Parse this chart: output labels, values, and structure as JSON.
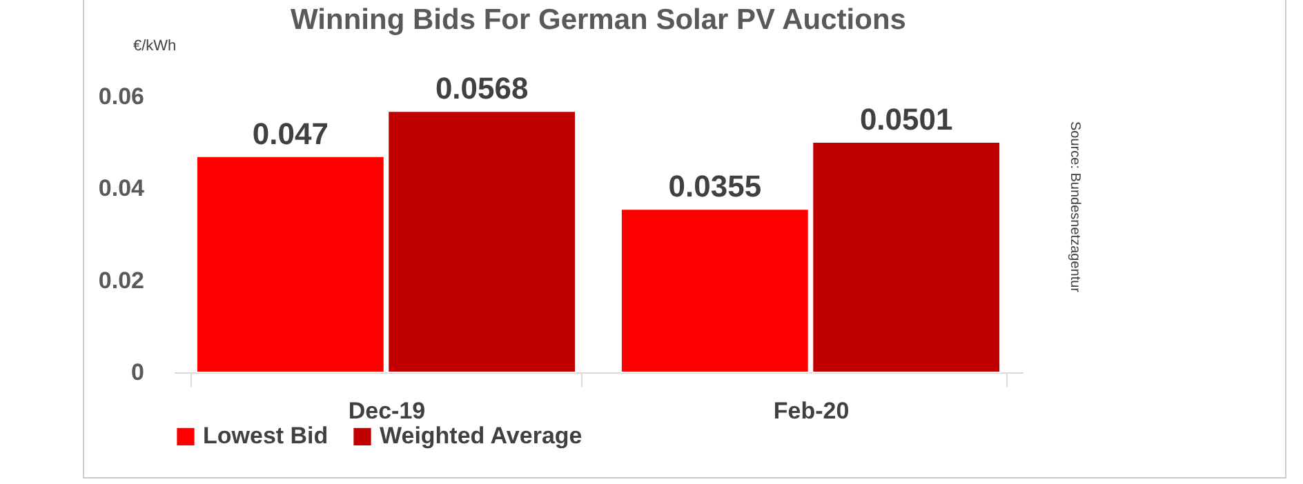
{
  "chart_data": {
    "type": "bar",
    "title": "Winning Bids For German Solar PV Auctions",
    "ylabel": "€/kWh",
    "categories": [
      "Dec-19",
      "Feb-20"
    ],
    "series": [
      {
        "name": "Lowest Bid",
        "color": "#ff0000",
        "values": [
          0.047,
          0.0355
        ]
      },
      {
        "name": "Weighted Average",
        "color": "#c00000",
        "values": [
          0.0568,
          0.0501
        ]
      }
    ],
    "ylim": [
      0,
      0.06
    ],
    "yticks": [
      {
        "value": 0,
        "label": "0"
      },
      0.02,
      0.04,
      0.06
    ],
    "grid": false,
    "legend": "bottom",
    "data_labels": true,
    "annotations": [
      "Source: Bundesnetzagentur"
    ]
  }
}
